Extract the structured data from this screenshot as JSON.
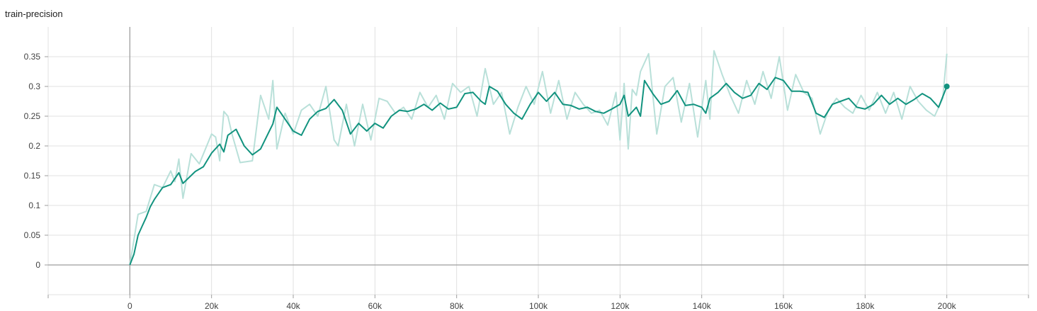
{
  "chart_data": {
    "type": "line",
    "title": "train-precision",
    "xlabel": "",
    "ylabel": "",
    "xlim": [
      -20000,
      220000
    ],
    "ylim": [
      -0.05,
      0.4
    ],
    "x_ticks": [
      {
        "value": 0,
        "label": "0"
      },
      {
        "value": 20000,
        "label": "20k"
      },
      {
        "value": 40000,
        "label": "40k"
      },
      {
        "value": 60000,
        "label": "60k"
      },
      {
        "value": 80000,
        "label": "80k"
      },
      {
        "value": 100000,
        "label": "100k"
      },
      {
        "value": 120000,
        "label": "120k"
      },
      {
        "value": 140000,
        "label": "140k"
      },
      {
        "value": 160000,
        "label": "160k"
      },
      {
        "value": 180000,
        "label": "180k"
      },
      {
        "value": 200000,
        "label": "200k"
      }
    ],
    "y_ticks": [
      {
        "value": 0,
        "label": "0"
      },
      {
        "value": 0.05,
        "label": "0.05"
      },
      {
        "value": 0.1,
        "label": "0.1"
      },
      {
        "value": 0.15,
        "label": "0.15"
      },
      {
        "value": 0.2,
        "label": "0.2"
      },
      {
        "value": 0.25,
        "label": "0.25"
      },
      {
        "value": 0.3,
        "label": "0.3"
      },
      {
        "value": 0.35,
        "label": "0.35"
      }
    ],
    "grid": true,
    "colors": {
      "line": "#12937f",
      "raw": "#b9e0d9",
      "grid": "#e0e0e0",
      "axis": "#9e9e9e"
    },
    "series": [
      {
        "role": "smoothed",
        "x": [
          0,
          1000,
          2000,
          3000,
          4000,
          5000,
          6000,
          7000,
          8000,
          10000,
          12000,
          13000,
          16000,
          18000,
          20000,
          22000,
          23000,
          24000,
          26000,
          28000,
          30000,
          31000,
          32000,
          35000,
          36000,
          38000,
          40000,
          42000,
          44000,
          46000,
          48000,
          50000,
          52000,
          54000,
          56000,
          58000,
          60000,
          62000,
          64000,
          66000,
          68000,
          70000,
          72000,
          74000,
          76000,
          78000,
          80000,
          82000,
          84000,
          86000,
          87000,
          88000,
          90000,
          92000,
          94000,
          96000,
          98000,
          100000,
          102000,
          104000,
          106000,
          108000,
          110000,
          112000,
          114000,
          116000,
          118000,
          120000,
          121000,
          122000,
          124000,
          125000,
          126000,
          128000,
          130000,
          132000,
          134000,
          136000,
          138000,
          140000,
          141000,
          142000,
          144000,
          146000,
          148000,
          150000,
          152000,
          154000,
          156000,
          158000,
          160000,
          162000,
          164000,
          166000,
          168000,
          170000,
          172000,
          174000,
          176000,
          178000,
          180000,
          182000,
          184000,
          186000,
          188000,
          190000,
          192000,
          194000,
          196000,
          198000,
          200000
        ],
        "y": [
          0,
          0.018,
          0.05,
          0.065,
          0.08,
          0.098,
          0.11,
          0.12,
          0.13,
          0.135,
          0.155,
          0.137,
          0.157,
          0.165,
          0.188,
          0.203,
          0.19,
          0.218,
          0.228,
          0.2,
          0.185,
          0.19,
          0.195,
          0.237,
          0.265,
          0.245,
          0.225,
          0.218,
          0.245,
          0.258,
          0.263,
          0.278,
          0.26,
          0.22,
          0.238,
          0.225,
          0.238,
          0.23,
          0.25,
          0.26,
          0.258,
          0.262,
          0.27,
          0.26,
          0.272,
          0.262,
          0.265,
          0.288,
          0.29,
          0.275,
          0.27,
          0.3,
          0.292,
          0.27,
          0.255,
          0.245,
          0.27,
          0.29,
          0.275,
          0.29,
          0.27,
          0.268,
          0.262,
          0.265,
          0.258,
          0.255,
          0.262,
          0.27,
          0.285,
          0.25,
          0.265,
          0.25,
          0.31,
          0.288,
          0.27,
          0.275,
          0.293,
          0.268,
          0.27,
          0.265,
          0.255,
          0.28,
          0.29,
          0.305,
          0.29,
          0.28,
          0.285,
          0.305,
          0.295,
          0.315,
          0.31,
          0.292,
          0.292,
          0.29,
          0.255,
          0.248,
          0.27,
          0.275,
          0.28,
          0.265,
          0.262,
          0.27,
          0.285,
          0.27,
          0.28,
          0.27,
          0.278,
          0.288,
          0.28,
          0.265,
          0.3
        ]
      },
      {
        "role": "raw",
        "x": [
          0,
          2000,
          4000,
          6000,
          8000,
          10000,
          11000,
          12000,
          13000,
          15000,
          17000,
          20000,
          21000,
          22000,
          23000,
          24000,
          25000,
          27000,
          30000,
          32000,
          34000,
          35000,
          36000,
          38000,
          40000,
          42000,
          44000,
          46000,
          48000,
          50000,
          51000,
          53000,
          55000,
          57000,
          59000,
          61000,
          63000,
          65000,
          67000,
          69000,
          71000,
          73000,
          75000,
          77000,
          79000,
          81000,
          83000,
          85000,
          87000,
          89000,
          91000,
          93000,
          95000,
          97000,
          99000,
          101000,
          103000,
          105000,
          107000,
          109000,
          111000,
          113000,
          115000,
          117000,
          119000,
          120000,
          121000,
          122000,
          123000,
          124000,
          125000,
          127000,
          129000,
          131000,
          133000,
          135000,
          137000,
          139000,
          141000,
          142000,
          143000,
          145000,
          147000,
          149000,
          151000,
          153000,
          155000,
          157000,
          159000,
          161000,
          163000,
          165000,
          167000,
          169000,
          171000,
          173000,
          175000,
          177000,
          179000,
          181000,
          183000,
          185000,
          187000,
          189000,
          191000,
          193000,
          195000,
          197000,
          199000,
          200000
        ],
        "y": [
          0,
          0.085,
          0.09,
          0.135,
          0.13,
          0.158,
          0.14,
          0.178,
          0.112,
          0.187,
          0.17,
          0.22,
          0.215,
          0.175,
          0.258,
          0.25,
          0.22,
          0.172,
          0.175,
          0.285,
          0.245,
          0.31,
          0.195,
          0.255,
          0.22,
          0.26,
          0.27,
          0.25,
          0.3,
          0.21,
          0.2,
          0.27,
          0.2,
          0.27,
          0.21,
          0.28,
          0.275,
          0.255,
          0.265,
          0.245,
          0.29,
          0.265,
          0.285,
          0.245,
          0.305,
          0.29,
          0.3,
          0.25,
          0.33,
          0.27,
          0.29,
          0.22,
          0.265,
          0.3,
          0.27,
          0.325,
          0.255,
          0.31,
          0.245,
          0.29,
          0.27,
          0.255,
          0.26,
          0.235,
          0.29,
          0.21,
          0.305,
          0.195,
          0.295,
          0.285,
          0.325,
          0.355,
          0.22,
          0.3,
          0.315,
          0.24,
          0.305,
          0.215,
          0.31,
          0.245,
          0.36,
          0.32,
          0.285,
          0.255,
          0.31,
          0.27,
          0.325,
          0.28,
          0.35,
          0.26,
          0.32,
          0.29,
          0.28,
          0.22,
          0.26,
          0.28,
          0.265,
          0.255,
          0.285,
          0.26,
          0.29,
          0.255,
          0.29,
          0.245,
          0.3,
          0.275,
          0.26,
          0.25,
          0.28,
          0.355
        ]
      }
    ]
  }
}
